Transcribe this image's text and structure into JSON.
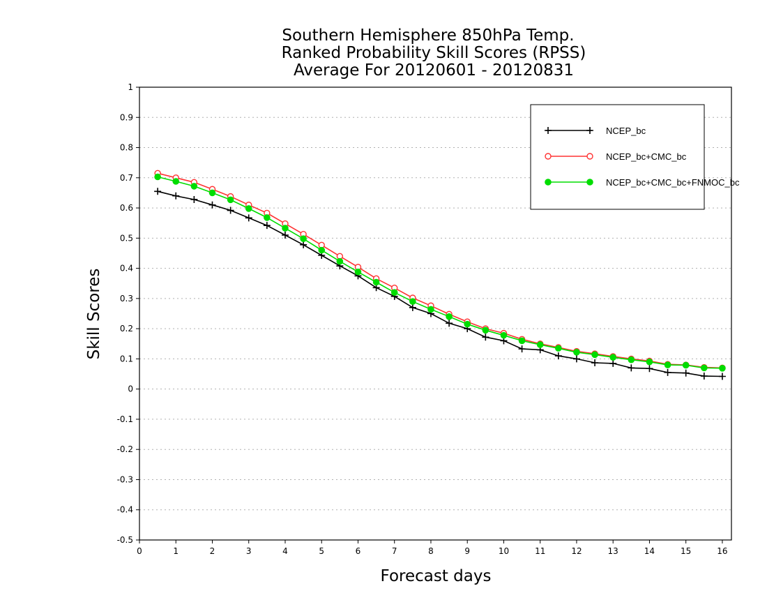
{
  "chart_data": {
    "type": "line",
    "title": [
      "Southern Hemisphere 850hPa Temp.",
      "Ranked Probability Skill Scores (RPSS)",
      "Average For 20120601 - 20120831"
    ],
    "xlabel": "Forecast days",
    "ylabel": "Skill Scores",
    "xlim": [
      0,
      16.25
    ],
    "ylim": [
      -0.5,
      1
    ],
    "x_ticks": [
      0,
      1,
      2,
      3,
      4,
      5,
      6,
      7,
      8,
      9,
      10,
      11,
      12,
      13,
      14,
      15,
      16
    ],
    "y_ticks": [
      -0.5,
      -0.4,
      -0.3,
      -0.2,
      -0.1,
      0,
      0.1,
      0.2,
      0.3,
      0.4,
      0.5,
      0.6,
      0.7,
      0.8,
      0.9,
      1
    ],
    "y_tick_labels": [
      "-0.5",
      "-0.4",
      "-0.3",
      "-0.2",
      "-0.1",
      "0",
      "0.1",
      "0.2",
      "0.3",
      "0.4",
      "0.5",
      "0.6",
      "0.7",
      "0.8",
      "0.9",
      "1"
    ],
    "grid": "horizontal dotted",
    "legend_position": "top-right",
    "x": [
      0.5,
      1,
      1.5,
      2,
      2.5,
      3,
      3.5,
      4,
      4.5,
      5,
      5.5,
      6,
      6.5,
      7,
      7.5,
      8,
      8.5,
      9,
      9.5,
      10,
      10.5,
      11,
      11.5,
      12,
      12.5,
      13,
      13.5,
      14,
      14.5,
      15,
      15.5,
      16
    ],
    "series": [
      {
        "name": "NCEP_bc",
        "color": "#000000",
        "marker": "plus",
        "values": [
          0.655,
          0.64,
          0.628,
          0.61,
          0.592,
          0.567,
          0.542,
          0.51,
          0.478,
          0.443,
          0.408,
          0.375,
          0.336,
          0.307,
          0.27,
          0.25,
          0.218,
          0.2,
          0.172,
          0.16,
          0.133,
          0.13,
          0.11,
          0.1,
          0.087,
          0.085,
          0.07,
          0.068,
          0.055,
          0.053,
          0.043,
          0.042
        ]
      },
      {
        "name": "NCEP_bc+CMC_bc",
        "color": "#ff3333",
        "marker": "open-circle",
        "values": [
          0.715,
          0.7,
          0.685,
          0.662,
          0.638,
          0.61,
          0.583,
          0.548,
          0.513,
          0.477,
          0.44,
          0.404,
          0.366,
          0.335,
          0.302,
          0.276,
          0.248,
          0.223,
          0.2,
          0.185,
          0.165,
          0.15,
          0.138,
          0.125,
          0.117,
          0.108,
          0.1,
          0.093,
          0.082,
          0.08,
          0.072,
          0.07
        ]
      },
      {
        "name": "NCEP_bc+CMC_bc+FNMOC_bc",
        "color": "#00dd00",
        "marker": "filled-circle",
        "values": [
          0.703,
          0.688,
          0.672,
          0.65,
          0.627,
          0.598,
          0.568,
          0.533,
          0.498,
          0.46,
          0.423,
          0.388,
          0.354,
          0.32,
          0.29,
          0.264,
          0.24,
          0.215,
          0.195,
          0.178,
          0.16,
          0.147,
          0.135,
          0.122,
          0.114,
          0.105,
          0.097,
          0.09,
          0.08,
          0.079,
          0.07,
          0.069
        ]
      }
    ]
  }
}
